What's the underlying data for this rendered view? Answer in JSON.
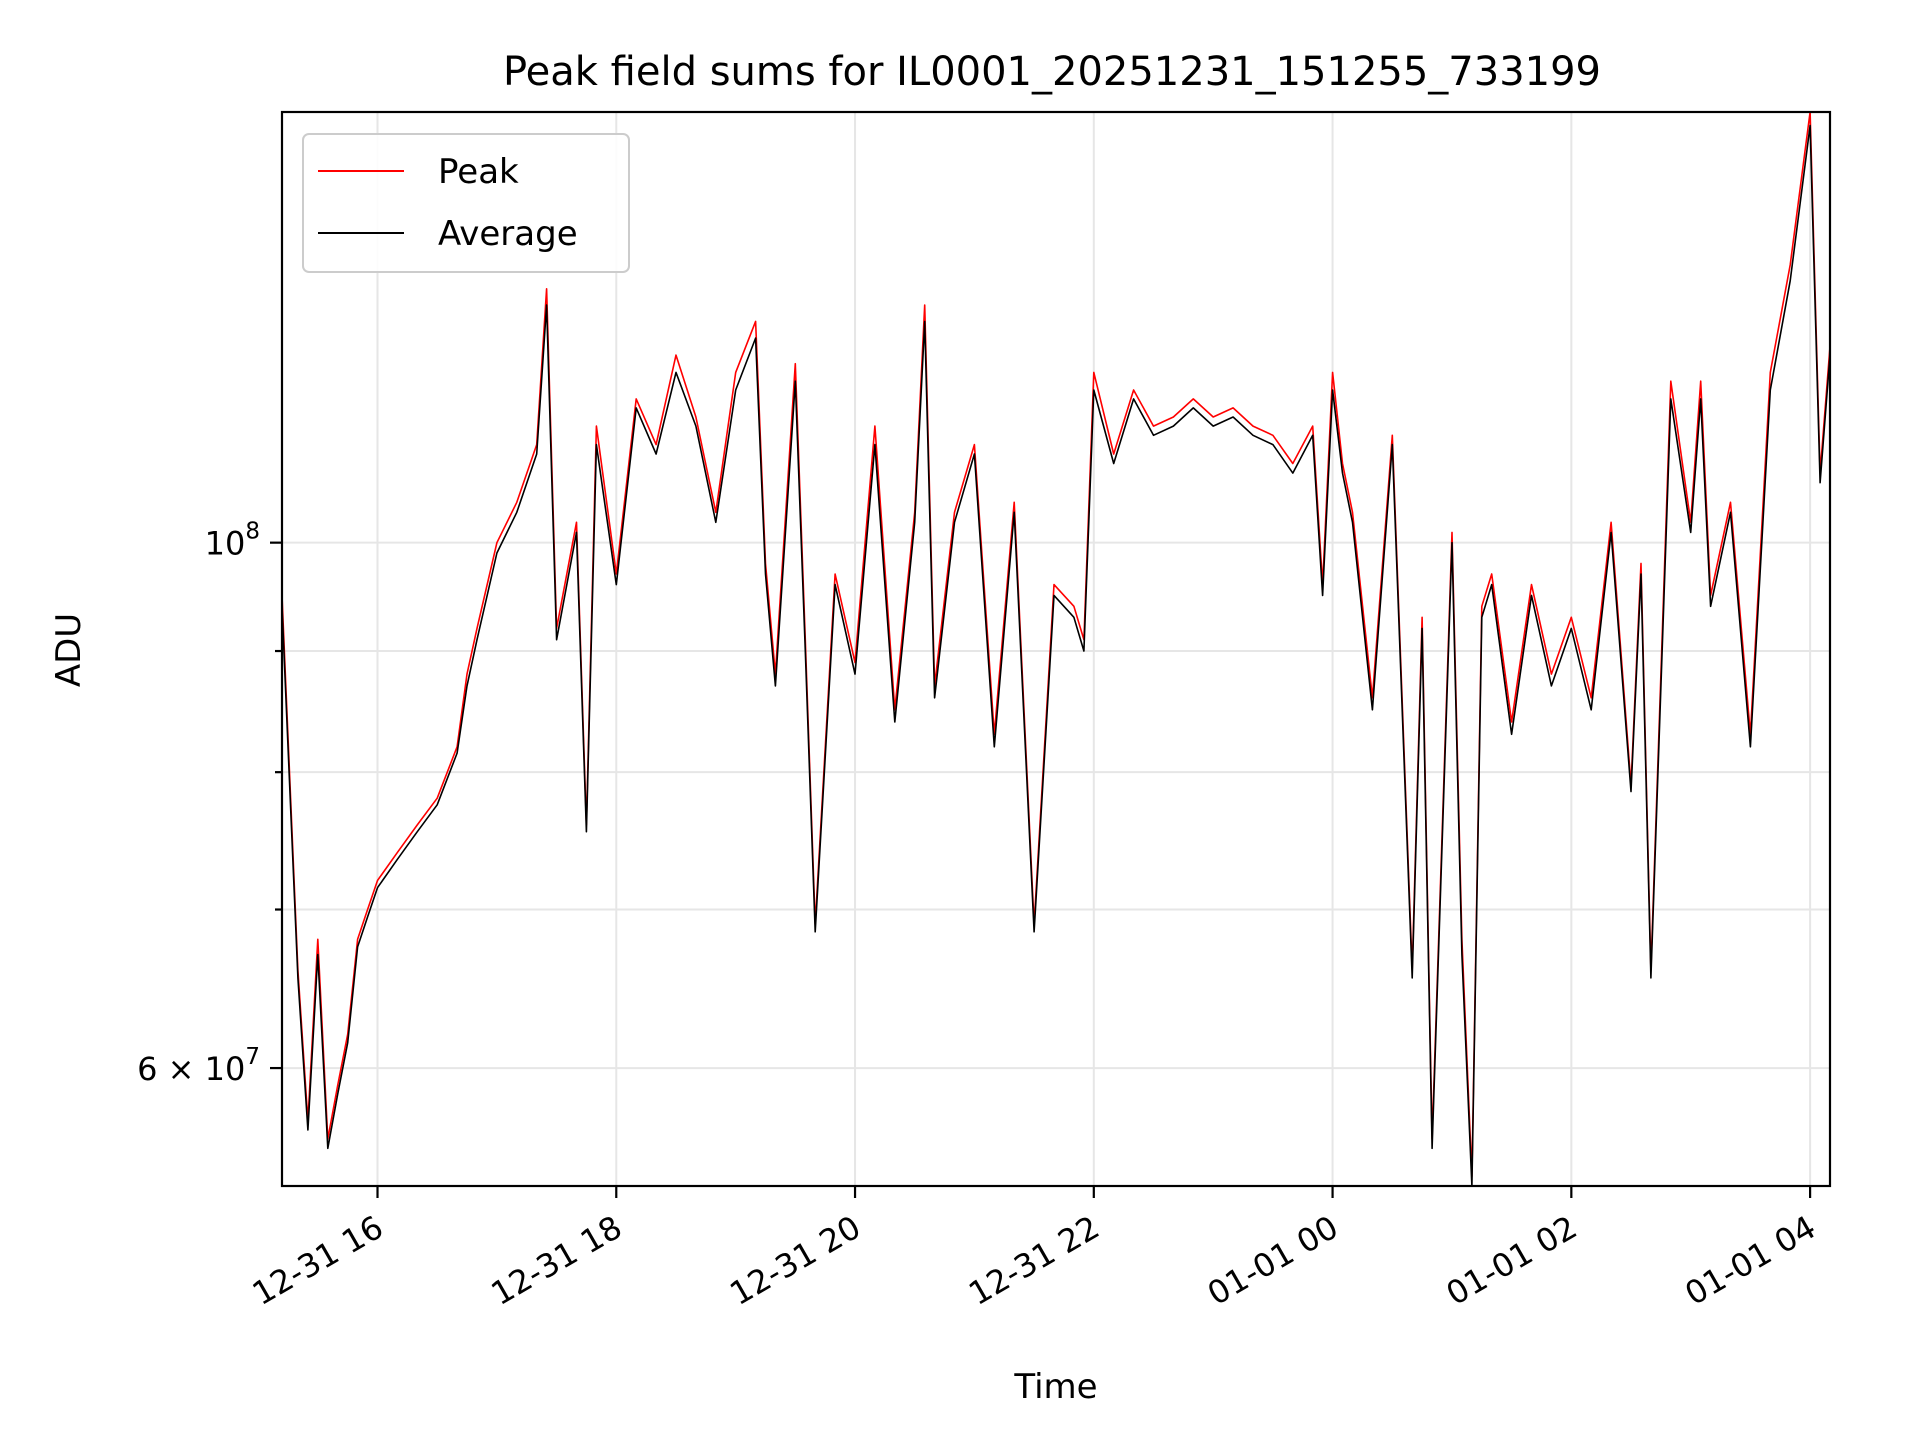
{
  "chart_data": {
    "type": "line",
    "title": "Peak field sums for IL0001_20251231_151255_733199",
    "xlabel": "Time",
    "ylabel": "ADU",
    "yscale": "log",
    "grid": true,
    "legend_position": "upper-left",
    "xlim": [
      "2025-12-31 15:12",
      "2026-01-01 04:10"
    ],
    "ylim": [
      53500000,
      152000000
    ],
    "x_ticks": [
      {
        "value": "2025-12-31 16:00",
        "label": "12-31 16"
      },
      {
        "value": "2025-12-31 18:00",
        "label": "12-31 18"
      },
      {
        "value": "2025-12-31 20:00",
        "label": "12-31 20"
      },
      {
        "value": "2025-12-31 22:00",
        "label": "12-31 22"
      },
      {
        "value": "2026-01-01 00:00",
        "label": "01-01 00"
      },
      {
        "value": "2026-01-01 02:00",
        "label": "01-01 02"
      },
      {
        "value": "2026-01-01 04:00",
        "label": "01-01 04"
      }
    ],
    "y_ticks": [
      {
        "value": 100000000,
        "label": "10",
        "exp": "8"
      },
      {
        "value": 60000000,
        "label": "6 × 10",
        "exp": "7"
      }
    ],
    "y_minor_ticks": [
      70000000,
      80000000,
      90000000
    ],
    "series": [
      {
        "name": "Peak",
        "color": "#ff0000",
        "x": [
          "2025-12-31 15:12",
          "2025-12-31 15:20",
          "2025-12-31 15:25",
          "2025-12-31 15:30",
          "2025-12-31 15:35",
          "2025-12-31 15:40",
          "2025-12-31 15:45",
          "2025-12-31 15:50",
          "2025-12-31 15:55",
          "2025-12-31 16:00",
          "2025-12-31 16:10",
          "2025-12-31 16:20",
          "2025-12-31 16:30",
          "2025-12-31 16:40",
          "2025-12-31 16:45",
          "2025-12-31 16:50",
          "2025-12-31 17:00",
          "2025-12-31 17:10",
          "2025-12-31 17:20",
          "2025-12-31 17:25",
          "2025-12-31 17:30",
          "2025-12-31 17:40",
          "2025-12-31 17:45",
          "2025-12-31 17:50",
          "2025-12-31 18:00",
          "2025-12-31 18:10",
          "2025-12-31 18:20",
          "2025-12-31 18:30",
          "2025-12-31 18:40",
          "2025-12-31 18:50",
          "2025-12-31 19:00",
          "2025-12-31 19:10",
          "2025-12-31 19:15",
          "2025-12-31 19:20",
          "2025-12-31 19:30",
          "2025-12-31 19:35",
          "2025-12-31 19:40",
          "2025-12-31 19:50",
          "2025-12-31 20:00",
          "2025-12-31 20:10",
          "2025-12-31 20:20",
          "2025-12-31 20:30",
          "2025-12-31 20:35",
          "2025-12-31 20:40",
          "2025-12-31 20:50",
          "2025-12-31 21:00",
          "2025-12-31 21:10",
          "2025-12-31 21:20",
          "2025-12-31 21:30",
          "2025-12-31 21:40",
          "2025-12-31 21:50",
          "2025-12-31 21:55",
          "2025-12-31 22:00",
          "2025-12-31 22:10",
          "2025-12-31 22:20",
          "2025-12-31 22:30",
          "2025-12-31 22:40",
          "2025-12-31 22:50",
          "2025-12-31 23:00",
          "2025-12-31 23:10",
          "2025-12-31 23:20",
          "2025-12-31 23:30",
          "2025-12-31 23:40",
          "2025-12-31 23:50",
          "2025-12-31 23:55",
          "2026-01-01 00:00",
          "2026-01-01 00:05",
          "2026-01-01 00:10",
          "2026-01-01 00:20",
          "2026-01-01 00:30",
          "2026-01-01 00:40",
          "2026-01-01 00:45",
          "2026-01-01 00:50",
          "2026-01-01 01:00",
          "2026-01-01 01:05",
          "2026-01-01 01:10",
          "2026-01-01 01:15",
          "2026-01-01 01:20",
          "2026-01-01 01:30",
          "2026-01-01 01:40",
          "2026-01-01 01:50",
          "2026-01-01 02:00",
          "2026-01-01 02:10",
          "2026-01-01 02:20",
          "2026-01-01 02:30",
          "2026-01-01 02:35",
          "2026-01-01 02:40",
          "2026-01-01 02:50",
          "2026-01-01 03:00",
          "2026-01-01 03:05",
          "2026-01-01 03:10",
          "2026-01-01 03:20",
          "2026-01-01 03:30",
          "2026-01-01 03:40",
          "2026-01-01 03:50",
          "2026-01-01 04:00",
          "2026-01-01 04:05",
          "2026-01-01 04:10"
        ],
        "values": [
          95000000,
          66000000,
          57000000,
          68000000,
          56000000,
          59000000,
          62000000,
          68000000,
          70000000,
          72000000,
          74000000,
          76000000,
          78000000,
          82000000,
          88000000,
          92000000,
          100000000,
          104000000,
          110000000,
          128000000,
          92000000,
          102000000,
          76000000,
          112000000,
          97000000,
          115000000,
          110000000,
          120000000,
          113000000,
          103000000,
          118000000,
          124000000,
          98000000,
          88000000,
          119000000,
          91000000,
          69000000,
          97000000,
          89000000,
          112000000,
          85000000,
          103000000,
          126000000,
          87000000,
          103000000,
          110000000,
          83000000,
          104000000,
          69000000,
          96000000,
          94000000,
          91000000,
          118000000,
          109000000,
          116000000,
          112000000,
          113000000,
          115000000,
          113000000,
          114000000,
          112000000,
          111000000,
          108000000,
          112000000,
          96000000,
          118000000,
          108000000,
          103000000,
          86000000,
          111000000,
          66000000,
          93000000,
          56000000,
          101000000,
          68000000,
          54000000,
          94000000,
          97000000,
          84000000,
          96000000,
          88000000,
          93000000,
          86000000,
          102000000,
          79000000,
          98000000,
          66000000,
          117000000,
          102000000,
          117000000,
          95000000,
          104000000,
          83000000,
          118000000,
          131000000,
          152000000,
          107000000,
          121000000
        ]
      },
      {
        "name": "Average",
        "color": "#000000",
        "x": [
          "2025-12-31 15:12",
          "2025-12-31 15:20",
          "2025-12-31 15:25",
          "2025-12-31 15:30",
          "2025-12-31 15:35",
          "2025-12-31 15:40",
          "2025-12-31 15:45",
          "2025-12-31 15:50",
          "2025-12-31 15:55",
          "2025-12-31 16:00",
          "2025-12-31 16:10",
          "2025-12-31 16:20",
          "2025-12-31 16:30",
          "2025-12-31 16:40",
          "2025-12-31 16:45",
          "2025-12-31 16:50",
          "2025-12-31 17:00",
          "2025-12-31 17:10",
          "2025-12-31 17:20",
          "2025-12-31 17:25",
          "2025-12-31 17:30",
          "2025-12-31 17:40",
          "2025-12-31 17:45",
          "2025-12-31 17:50",
          "2025-12-31 18:00",
          "2025-12-31 18:10",
          "2025-12-31 18:20",
          "2025-12-31 18:30",
          "2025-12-31 18:40",
          "2025-12-31 18:50",
          "2025-12-31 19:00",
          "2025-12-31 19:10",
          "2025-12-31 19:15",
          "2025-12-31 19:20",
          "2025-12-31 19:30",
          "2025-12-31 19:35",
          "2025-12-31 19:40",
          "2025-12-31 19:50",
          "2025-12-31 20:00",
          "2025-12-31 20:10",
          "2025-12-31 20:20",
          "2025-12-31 20:30",
          "2025-12-31 20:35",
          "2025-12-31 20:40",
          "2025-12-31 20:50",
          "2025-12-31 21:00",
          "2025-12-31 21:10",
          "2025-12-31 21:20",
          "2025-12-31 21:30",
          "2025-12-31 21:40",
          "2025-12-31 21:50",
          "2025-12-31 21:55",
          "2025-12-31 22:00",
          "2025-12-31 22:10",
          "2025-12-31 22:20",
          "2025-12-31 22:30",
          "2025-12-31 22:40",
          "2025-12-31 22:50",
          "2025-12-31 23:00",
          "2025-12-31 23:10",
          "2025-12-31 23:20",
          "2025-12-31 23:30",
          "2025-12-31 23:40",
          "2025-12-31 23:50",
          "2025-12-31 23:55",
          "2026-01-01 00:00",
          "2026-01-01 00:05",
          "2026-01-01 00:10",
          "2026-01-01 00:20",
          "2026-01-01 00:30",
          "2026-01-01 00:40",
          "2026-01-01 00:45",
          "2026-01-01 00:50",
          "2026-01-01 01:00",
          "2026-01-01 01:05",
          "2026-01-01 01:10",
          "2026-01-01 01:15",
          "2026-01-01 01:20",
          "2026-01-01 01:30",
          "2026-01-01 01:40",
          "2026-01-01 01:50",
          "2026-01-01 02:00",
          "2026-01-01 02:10",
          "2026-01-01 02:20",
          "2026-01-01 02:30",
          "2026-01-01 02:35",
          "2026-01-01 02:40",
          "2026-01-01 02:50",
          "2026-01-01 03:00",
          "2026-01-01 03:05",
          "2026-01-01 03:10",
          "2026-01-01 03:20",
          "2026-01-01 03:30",
          "2026-01-01 03:40",
          "2026-01-01 03:50",
          "2026-01-01 04:00",
          "2026-01-01 04:05",
          "2026-01-01 04:10"
        ],
        "values": [
          94000000,
          65500000,
          56500000,
          67000000,
          55500000,
          58500000,
          61500000,
          67500000,
          69500000,
          71500000,
          73500000,
          75500000,
          77500000,
          81500000,
          87000000,
          91000000,
          99000000,
          103000000,
          109000000,
          126000000,
          91000000,
          101000000,
          75500000,
          110000000,
          96000000,
          114000000,
          109000000,
          118000000,
          112000000,
          102000000,
          116000000,
          122000000,
          97000000,
          87000000,
          117000000,
          90000000,
          68500000,
          96000000,
          88000000,
          110000000,
          84000000,
          102000000,
          124000000,
          86000000,
          102000000,
          109000000,
          82000000,
          103000000,
          68500000,
          95000000,
          93000000,
          90000000,
          116000000,
          108000000,
          115000000,
          111000000,
          112000000,
          114000000,
          112000000,
          113000000,
          111000000,
          110000000,
          107000000,
          111000000,
          95000000,
          116000000,
          107000000,
          102000000,
          85000000,
          110000000,
          65500000,
          92000000,
          55500000,
          100000000,
          67000000,
          53500000,
          93000000,
          96000000,
          83000000,
          95000000,
          87000000,
          92000000,
          85000000,
          101000000,
          78500000,
          97000000,
          65500000,
          115000000,
          101000000,
          115000000,
          94000000,
          103000000,
          82000000,
          116000000,
          129000000,
          150000000,
          106000000,
          120000000
        ]
      }
    ]
  }
}
